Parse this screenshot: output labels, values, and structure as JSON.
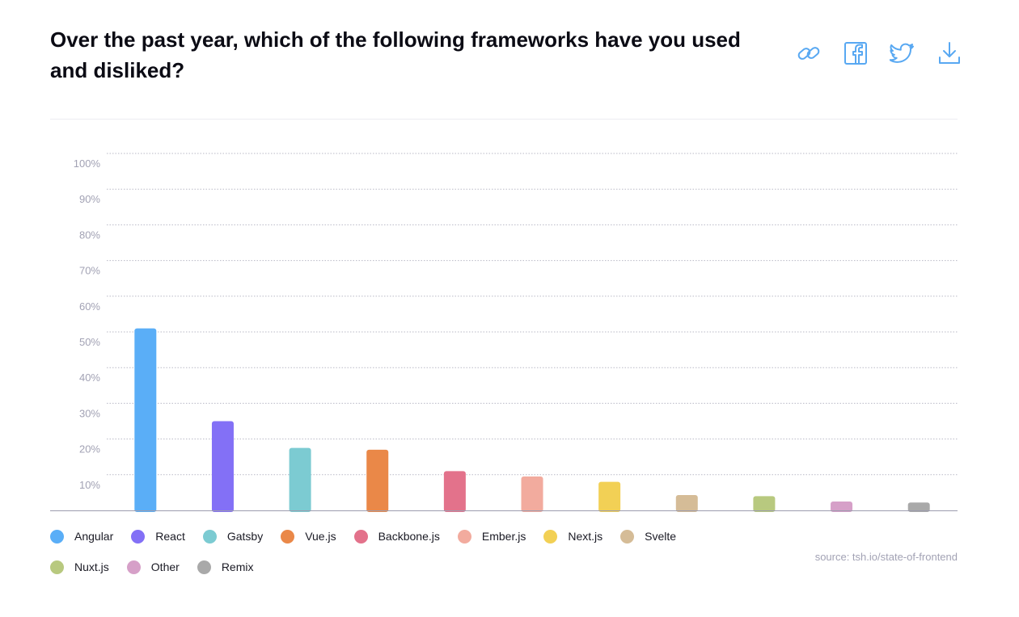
{
  "title": "Over the past year, which of the following frameworks have you used and disliked?",
  "share": {
    "icons": [
      "link-icon",
      "facebook-icon",
      "twitter-icon",
      "download-icon"
    ],
    "color": "#58a8f2"
  },
  "source": "source: tsh.io/state-of-frontend",
  "chart_data": {
    "type": "bar",
    "title": "Over the past year, which of the following frameworks have you used and disliked?",
    "xlabel": "",
    "ylabel": "",
    "ylim": [
      0,
      100
    ],
    "yticks": [
      "10%",
      "20%",
      "30%",
      "40%",
      "50%",
      "60%",
      "70%",
      "80%",
      "90%",
      "100%"
    ],
    "grid": true,
    "legend_position": "bottom-left",
    "categories": [
      "Angular",
      "React",
      "Gatsby",
      "Vue.js",
      "Backbone.js",
      "Ember.js",
      "Next.js",
      "Svelte",
      "Nuxt.js",
      "Other",
      "Remix"
    ],
    "values": [
      51,
      25,
      17.5,
      17,
      11,
      9.5,
      8,
      4.3,
      4,
      2.5,
      2.2
    ],
    "colors": [
      "#5aaef7",
      "#8370f6",
      "#7ccbd2",
      "#ea8848",
      "#e3728b",
      "#f2ab9e",
      "#f2d055",
      "#d5bc97",
      "#b8c97f",
      "#d6a0c8",
      "#a9a9a9"
    ]
  }
}
